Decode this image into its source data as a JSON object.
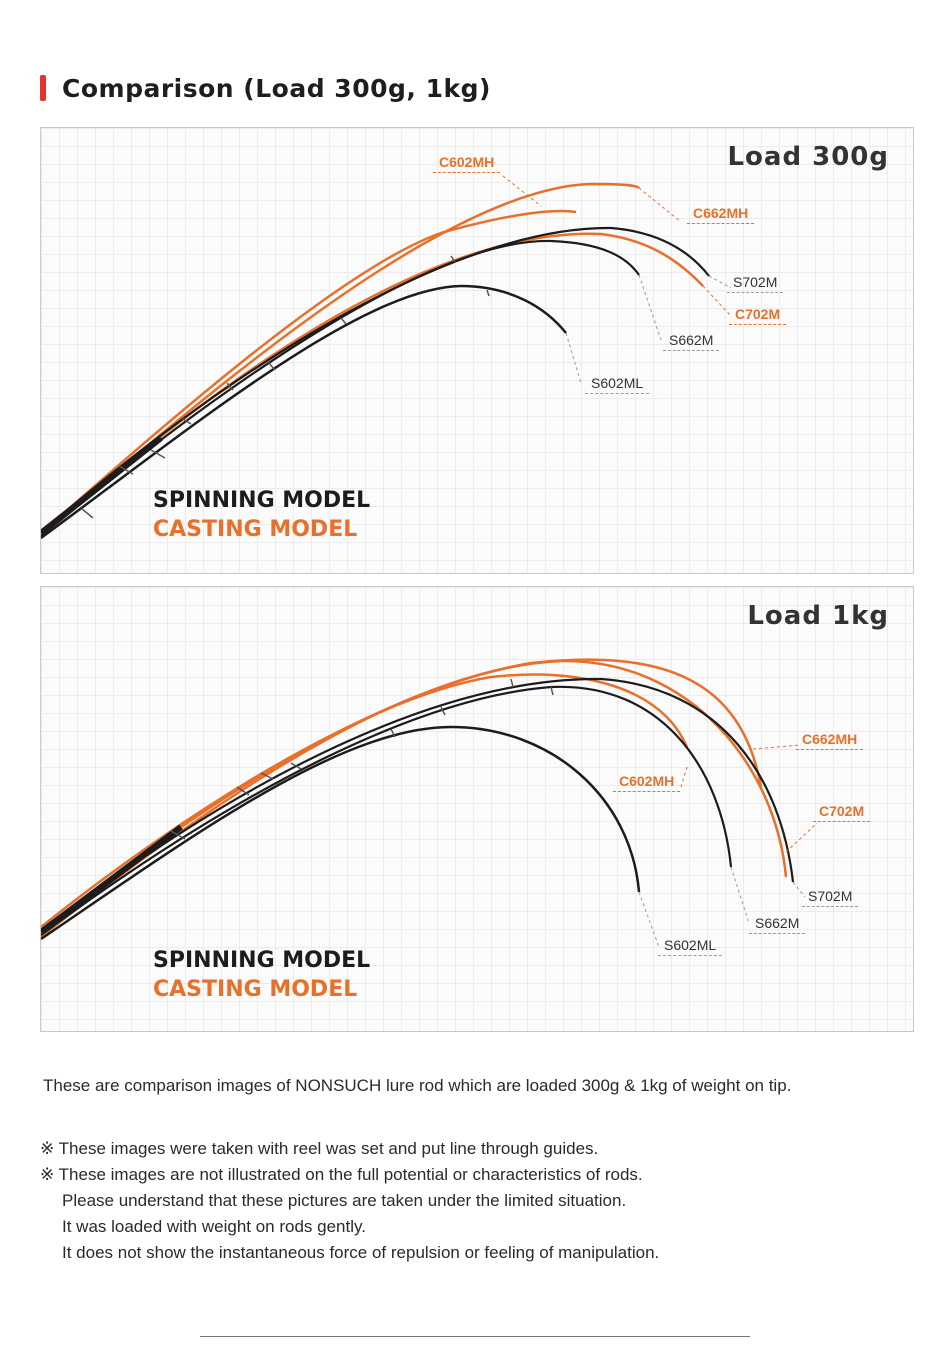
{
  "title": "Comparison (Load 300g, 1kg)",
  "accent_color": "#e8312b",
  "spinning_color": "#1c1c1c",
  "casting_color": "#e8702a",
  "panels": [
    {
      "load": "Load 300g",
      "legend_spinning": "SPINNING MODEL",
      "legend_casting": "CASTING MODEL",
      "rods": [
        {
          "label": "C602MH",
          "type": "casting"
        },
        {
          "label": "C662MH",
          "type": "casting"
        },
        {
          "label": "S702M",
          "type": "spinning"
        },
        {
          "label": "C702M",
          "type": "casting"
        },
        {
          "label": "S662M",
          "type": "spinning"
        },
        {
          "label": "S602ML",
          "type": "spinning"
        }
      ]
    },
    {
      "load": "Load 1kg",
      "legend_spinning": "SPINNING MODEL",
      "legend_casting": "CASTING MODEL",
      "rods": [
        {
          "label": "C662MH",
          "type": "casting"
        },
        {
          "label": "C602MH",
          "type": "casting"
        },
        {
          "label": "C702M",
          "type": "casting"
        },
        {
          "label": "S702M",
          "type": "spinning"
        },
        {
          "label": "S662M",
          "type": "spinning"
        },
        {
          "label": "S602ML",
          "type": "spinning"
        }
      ]
    }
  ],
  "description": "These are comparison images of NONSUCH lure rod which are loaded 300g & 1kg of weight on tip.",
  "notes": [
    "※ These images were taken with reel was set and put line through guides.",
    "※ These images are not illustrated on the full potential or characteristics of rods.",
    "Please understand that these pictures are taken under the limited situation.",
    "It was loaded with weight on rods gently.",
    "It does not show the instantaneous force of repulsion or feeling of manipulation."
  ]
}
